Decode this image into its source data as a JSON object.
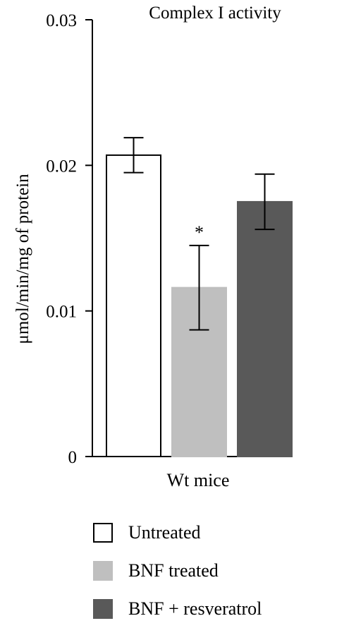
{
  "chart_data": {
    "type": "bar",
    "title": "Complex I activity",
    "ylabel": "μmol/min/mg of protein",
    "xlabel": "",
    "categories": [
      "Wt mice"
    ],
    "ylim": [
      0,
      0.03
    ],
    "yticks": [
      {
        "value": 0,
        "label": "0"
      },
      {
        "value": 0.01,
        "label": "0.01"
      },
      {
        "value": 0.02,
        "label": "0.02"
      },
      {
        "value": 0.03,
        "label": "0.03"
      }
    ],
    "series": [
      {
        "name": "Untreated",
        "values": [
          0.0207
        ],
        "error": [
          0.0012
        ],
        "color": "#ffffff",
        "stroke": "#000000",
        "annotation": ""
      },
      {
        "name": "BNF treated",
        "values": [
          0.0116
        ],
        "error": [
          0.0029
        ],
        "color": "#bfbfbf",
        "stroke": "#bfbfbf",
        "annotation": "*"
      },
      {
        "name": "BNF + resveratrol",
        "values": [
          0.0175
        ],
        "error": [
          0.0019
        ],
        "color": "#595959",
        "stroke": "#595959",
        "annotation": ""
      }
    ],
    "legend_position": "bottom",
    "grid": false
  }
}
